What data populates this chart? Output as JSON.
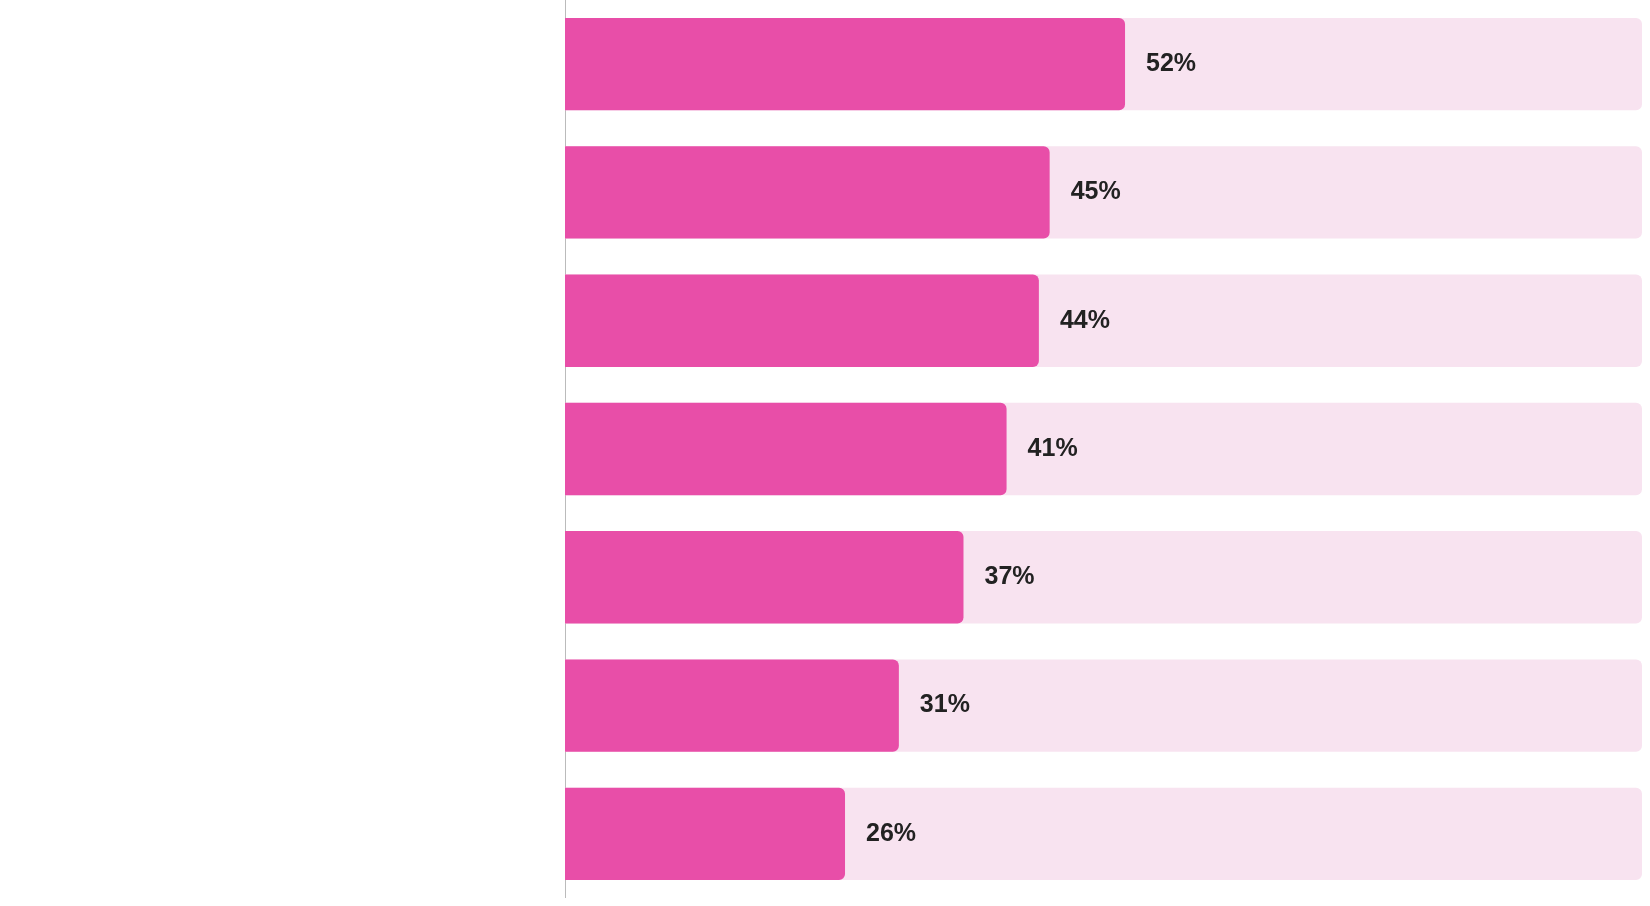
{
  "chart_data": {
    "type": "bar",
    "orientation": "horizontal",
    "categories": [
      null,
      null,
      null,
      null,
      null,
      null,
      null
    ],
    "values": [
      52,
      45,
      44,
      41,
      37,
      31,
      26
    ],
    "color": "#e84ea8",
    "xlim": [
      0,
      100
    ],
    "data_labels": true,
    "value_labels": [
      "52%",
      "45%",
      "44%",
      "41%",
      "37%",
      "31%",
      "26%"
    ],
    "legend": false
  }
}
